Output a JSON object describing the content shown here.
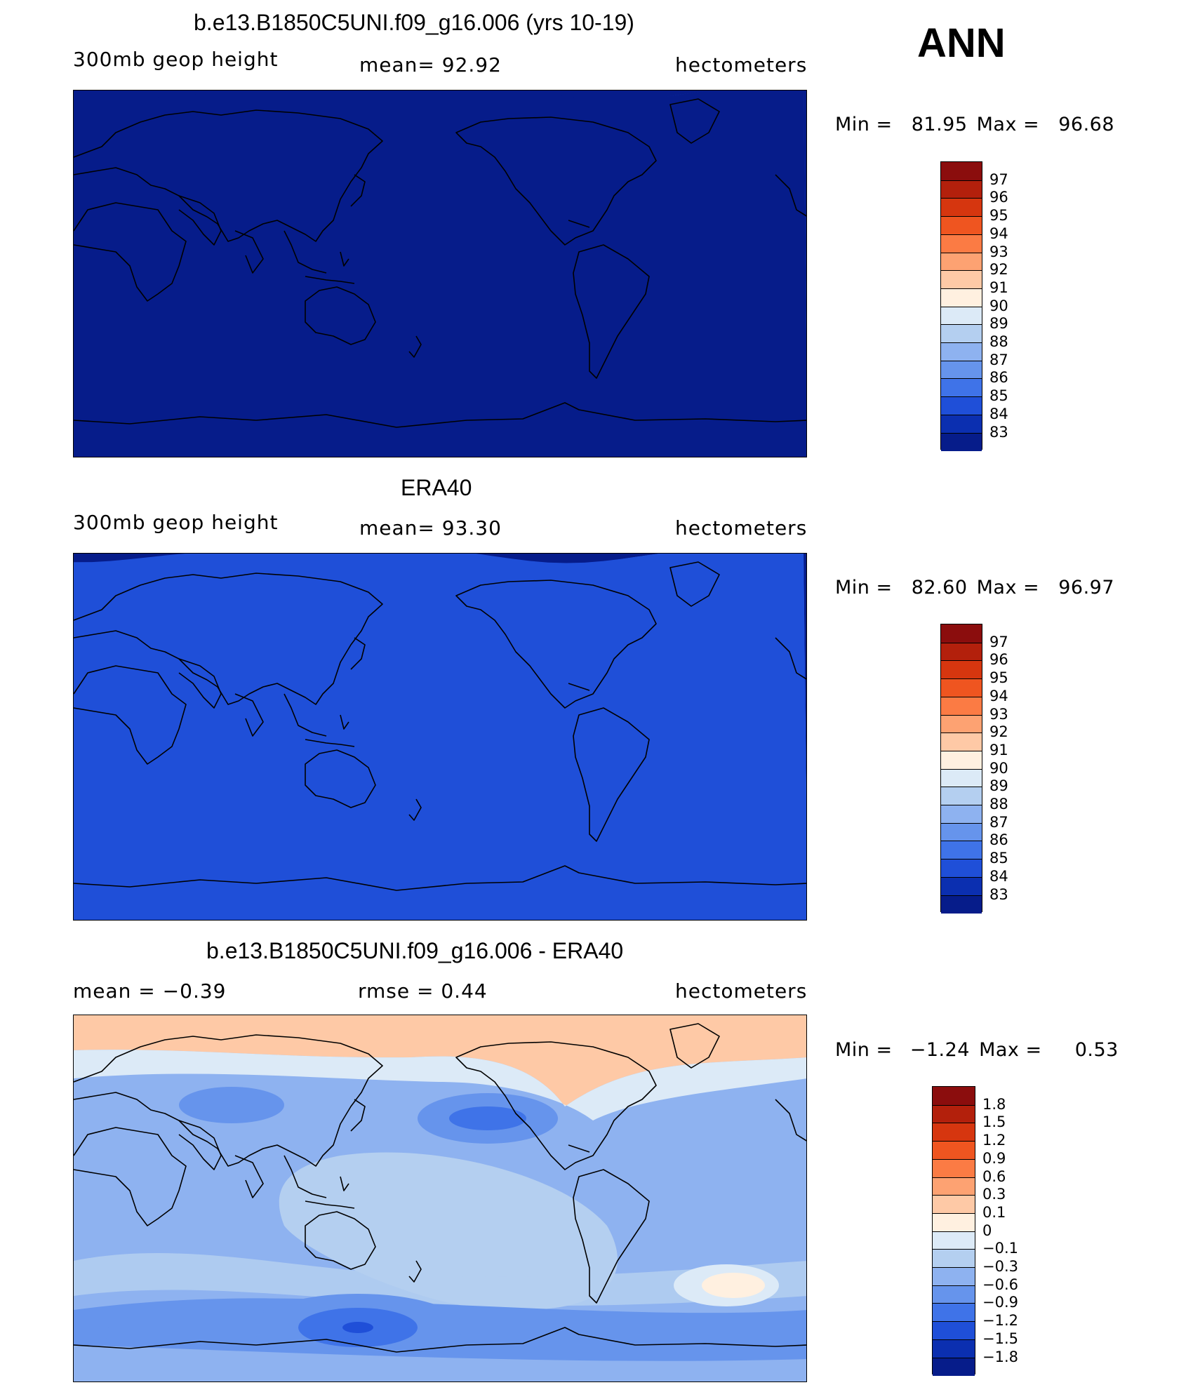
{
  "season": "ANN",
  "panels": [
    {
      "id": "model",
      "title": "b.e13.B1850C5UNI.f09_g16.006 (yrs 10-19)",
      "left_label": "300mb  geop  height",
      "mid_label": "mean=   92.92",
      "right_label": "hectometers",
      "min_label": "Min  =",
      "min_value": "81.95",
      "max_label": "Max  =",
      "max_value": "96.68",
      "palette": "abs",
      "colorbar_levels": [
        "97",
        "96",
        "95",
        "94",
        "93",
        "92",
        "91",
        "90",
        "89",
        "88",
        "87",
        "86",
        "85",
        "84",
        "83"
      ]
    },
    {
      "id": "obs",
      "title": "ERA40",
      "left_label": "300mb  geop  height",
      "mid_label": "mean=   93.30",
      "right_label": "hectometers",
      "min_label": "Min  =",
      "min_value": "82.60",
      "max_label": "Max  =",
      "max_value": "96.97",
      "palette": "abs",
      "colorbar_levels": [
        "97",
        "96",
        "95",
        "94",
        "93",
        "92",
        "91",
        "90",
        "89",
        "88",
        "87",
        "86",
        "85",
        "84",
        "83"
      ]
    },
    {
      "id": "diff",
      "title": "b.e13.B1850C5UNI.f09_g16.006 - ERA40",
      "left_label": "mean  =    −0.39",
      "mid_label": "rmse  =     0.44",
      "right_label": "hectometers",
      "min_label": "Min  =",
      "min_value": "−1.24",
      "max_label": "Max  =",
      "max_value": "0.53",
      "palette": "diff",
      "colorbar_levels": [
        "1.8",
        "1.5",
        "1.2",
        "0.9",
        "0.6",
        "0.3",
        "0.1",
        "0",
        "−0.1",
        "−0.3",
        "−0.6",
        "−0.9",
        "−1.2",
        "−1.5",
        "−1.8"
      ]
    }
  ],
  "palettes": {
    "abs": [
      "#8b0d0d",
      "#b3200c",
      "#d6360f",
      "#ef5520",
      "#fb7b44",
      "#fda272",
      "#fec9a6",
      "#fff0e0",
      "#dceaf7",
      "#b4cff0",
      "#8eb2f0",
      "#6694ec",
      "#3f73e8",
      "#1f4fd8",
      "#0b2fb0",
      "#061c8a"
    ],
    "diff": [
      "#8b0d0d",
      "#b3200c",
      "#d6360f",
      "#ef5520",
      "#fb7b44",
      "#fda272",
      "#fec9a6",
      "#fff0e0",
      "#dceaf7",
      "#b4cff0",
      "#8eb2f0",
      "#6694ec",
      "#3f73e8",
      "#1f4fd8",
      "#0b2fb0",
      "#061c8a"
    ]
  }
}
